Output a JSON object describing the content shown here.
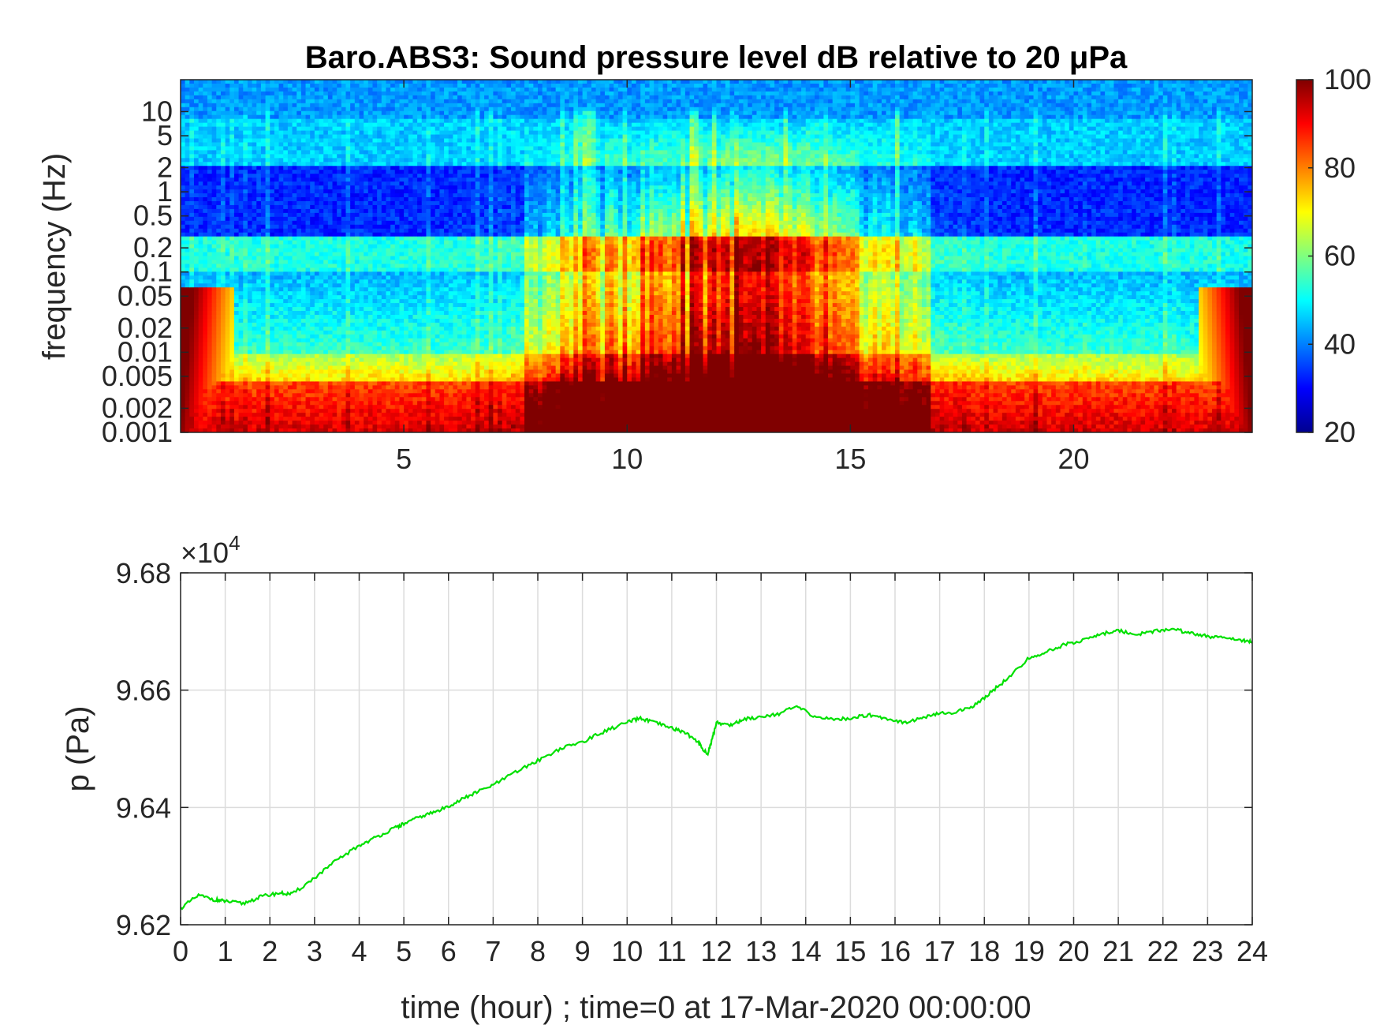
{
  "chart_data": [
    {
      "type": "heatmap",
      "title": "Baro.ABS3: Sound pressure level dB relative to 20 μPa",
      "ylabel": "frequency (Hz)",
      "xlabel": "",
      "x_ticks": [
        5,
        10,
        15,
        20
      ],
      "xlim": [
        0,
        24
      ],
      "y_scale": "log",
      "y_ticks": [
        {
          "value": 10,
          "label": "10"
        },
        {
          "value": 5,
          "label": "5"
        },
        {
          "value": 2,
          "label": "2"
        },
        {
          "value": 1,
          "label": "1"
        },
        {
          "value": 0.5,
          "label": "0.5"
        },
        {
          "value": 0.2,
          "label": "0.2"
        },
        {
          "value": 0.1,
          "label": "0.1"
        },
        {
          "value": 0.05,
          "label": "0.05"
        },
        {
          "value": 0.02,
          "label": "0.02"
        },
        {
          "value": 0.01,
          "label": "0.01"
        },
        {
          "value": 0.005,
          "label": "0.005"
        },
        {
          "value": 0.002,
          "label": "0.002"
        },
        {
          "value": 0.001,
          "label": "0.001"
        }
      ],
      "ylim": [
        0.001,
        25
      ],
      "colorbar": {
        "colormap": "jet",
        "range": [
          20,
          100
        ],
        "ticks": [
          "100",
          "80",
          "60",
          "40",
          "20"
        ]
      },
      "colors": {
        "low": "#00008f",
        "mid": "#7fff7f",
        "high": "#800000"
      }
    },
    {
      "type": "line",
      "title": "",
      "xlabel": "time (hour) ; time=0 at 17-Mar-2020 00:00:00",
      "ylabel": "p (Pa)",
      "exponent_label": "×10",
      "exponent_power": "4",
      "x_ticks": [
        "0",
        "1",
        "2",
        "3",
        "4",
        "5",
        "6",
        "7",
        "8",
        "9",
        "10",
        "11",
        "12",
        "13",
        "14",
        "15",
        "16",
        "17",
        "18",
        "19",
        "20",
        "21",
        "22",
        "23",
        "24"
      ],
      "y_ticks": [
        "9.68",
        "9.66",
        "9.64",
        "9.62"
      ],
      "xlim": [
        0,
        24
      ],
      "ylim": [
        9.62,
        9.68
      ],
      "grid": true,
      "series": [
        {
          "color": "#00e000",
          "x": [
            0,
            0.4,
            0.8,
            1.0,
            1.4,
            1.8,
            2.2,
            2.5,
            3.0,
            3.5,
            4.0,
            4.4,
            4.8,
            5.0,
            5.4,
            5.8,
            6.2,
            6.6,
            7.0,
            7.5,
            8.0,
            8.5,
            9.0,
            9.5,
            10.0,
            10.3,
            10.6,
            11.0,
            11.3,
            11.6,
            11.8,
            11.9,
            12.0,
            12.3,
            12.6,
            13.0,
            13.4,
            13.8,
            14.2,
            14.6,
            15.0,
            15.4,
            15.8,
            16.2,
            16.6,
            17.0,
            17.4,
            17.8,
            18.2,
            18.6,
            19.0,
            19.4,
            19.8,
            20.2,
            20.6,
            21.0,
            21.4,
            21.8,
            22.2,
            22.6,
            23.0,
            23.4,
            23.8,
            24.0
          ],
          "y": [
            9.6228,
            9.625,
            9.6242,
            9.624,
            9.6236,
            9.6248,
            9.6254,
            9.6252,
            9.628,
            9.631,
            9.6335,
            9.635,
            9.6365,
            9.6372,
            9.6385,
            9.6395,
            9.641,
            9.6425,
            9.6438,
            9.646,
            9.648,
            9.65,
            9.6512,
            9.653,
            9.6545,
            9.6552,
            9.6545,
            9.6535,
            9.6528,
            9.651,
            9.649,
            9.6515,
            9.6545,
            9.654,
            9.655,
            9.6555,
            9.656,
            9.6572,
            9.6555,
            9.655,
            9.6552,
            9.6558,
            9.6552,
            9.6545,
            9.6552,
            9.656,
            9.6563,
            9.6575,
            9.66,
            9.6625,
            9.6655,
            9.6665,
            9.6678,
            9.6685,
            9.6695,
            9.6702,
            9.6695,
            9.67,
            9.6705,
            9.6697,
            9.6692,
            9.6688,
            9.6685,
            9.6682
          ]
        }
      ]
    }
  ]
}
